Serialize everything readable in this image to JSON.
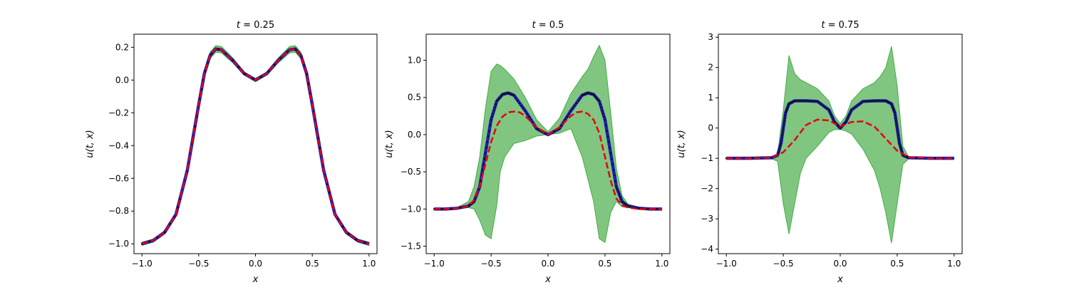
{
  "chart_data": [
    {
      "type": "line",
      "title": "t = 0.25",
      "xlabel": "x",
      "ylabel": "u(t, x)",
      "xlim": [
        -1.07,
        1.07
      ],
      "ylim": [
        -1.06,
        0.28
      ],
      "xticks": [
        "-1.0",
        "-0.5",
        "0.0",
        "0.5",
        "1.0"
      ],
      "yticks": [
        "-1.0",
        "-0.8",
        "-0.6",
        "-0.4",
        "-0.2",
        "0.0",
        "0.2"
      ],
      "grid": false,
      "series": [
        {
          "role": "exact",
          "style": "blue solid with black markers",
          "x": [
            -1.0,
            -0.9,
            -0.8,
            -0.7,
            -0.6,
            -0.5,
            -0.45,
            -0.4,
            -0.35,
            -0.3,
            -0.2,
            -0.1,
            0.0,
            0.1,
            0.2,
            0.3,
            0.35,
            0.4,
            0.45,
            0.5,
            0.6,
            0.7,
            0.8,
            0.9,
            1.0
          ],
          "y": [
            -1.0,
            -0.98,
            -0.93,
            -0.82,
            -0.55,
            -0.15,
            0.04,
            0.15,
            0.19,
            0.185,
            0.12,
            0.04,
            0.0,
            0.04,
            0.12,
            0.185,
            0.19,
            0.15,
            0.04,
            -0.15,
            -0.55,
            -0.82,
            -0.93,
            -0.98,
            -1.0
          ]
        },
        {
          "role": "prediction-mean",
          "style": "red dashed",
          "x": [
            -1.0,
            -0.9,
            -0.8,
            -0.7,
            -0.6,
            -0.5,
            -0.45,
            -0.4,
            -0.35,
            -0.3,
            -0.2,
            -0.1,
            0.0,
            0.1,
            0.2,
            0.3,
            0.35,
            0.4,
            0.45,
            0.5,
            0.6,
            0.7,
            0.8,
            0.9,
            1.0
          ],
          "y": [
            -1.0,
            -0.98,
            -0.93,
            -0.82,
            -0.55,
            -0.15,
            0.04,
            0.15,
            0.19,
            0.185,
            0.12,
            0.04,
            0.0,
            0.04,
            0.12,
            0.185,
            0.19,
            0.15,
            0.04,
            -0.15,
            -0.55,
            -0.82,
            -0.93,
            -0.98,
            -1.0
          ]
        },
        {
          "role": "uncertainty-band",
          "style": "green fill",
          "x": [
            -1.0,
            -0.9,
            -0.8,
            -0.7,
            -0.6,
            -0.5,
            -0.45,
            -0.4,
            -0.35,
            -0.3,
            -0.2,
            -0.1,
            0.0,
            0.1,
            0.2,
            0.3,
            0.35,
            0.4,
            0.45,
            0.5,
            0.6,
            0.7,
            0.8,
            0.9,
            1.0
          ],
          "lower": [
            -1.01,
            -0.99,
            -0.94,
            -0.83,
            -0.56,
            -0.17,
            0.02,
            0.13,
            0.17,
            0.165,
            0.105,
            0.03,
            -0.01,
            0.03,
            0.105,
            0.165,
            0.17,
            0.13,
            0.02,
            -0.17,
            -0.56,
            -0.83,
            -0.94,
            -0.99,
            -1.01
          ],
          "upper": [
            -0.99,
            -0.97,
            -0.92,
            -0.81,
            -0.54,
            -0.13,
            0.06,
            0.17,
            0.21,
            0.205,
            0.135,
            0.05,
            0.01,
            0.05,
            0.135,
            0.205,
            0.21,
            0.17,
            0.06,
            -0.13,
            -0.54,
            -0.81,
            -0.92,
            -0.97,
            -0.99
          ]
        }
      ]
    },
    {
      "type": "line",
      "title": "t = 0.5",
      "xlabel": "x",
      "ylabel": "u(t, x)",
      "xlim": [
        -1.07,
        1.07
      ],
      "ylim": [
        -1.6,
        1.35
      ],
      "xticks": [
        "-1.0",
        "-0.5",
        "0.0",
        "0.5",
        "1.0"
      ],
      "yticks": [
        "-1.5",
        "-1.0",
        "-0.5",
        "0.0",
        "0.5",
        "1.0"
      ],
      "grid": false,
      "series": [
        {
          "role": "exact",
          "style": "blue solid with black markers",
          "x": [
            -1.0,
            -0.9,
            -0.8,
            -0.7,
            -0.65,
            -0.6,
            -0.55,
            -0.5,
            -0.45,
            -0.4,
            -0.35,
            -0.3,
            -0.2,
            -0.1,
            0.0,
            0.1,
            0.2,
            0.3,
            0.35,
            0.4,
            0.45,
            0.5,
            0.55,
            0.6,
            0.65,
            0.7,
            0.8,
            0.9,
            1.0
          ],
          "y": [
            -1.0,
            -1.0,
            -0.99,
            -0.96,
            -0.9,
            -0.7,
            -0.25,
            0.2,
            0.45,
            0.54,
            0.56,
            0.53,
            0.32,
            0.08,
            0.0,
            0.08,
            0.32,
            0.53,
            0.56,
            0.54,
            0.45,
            0.2,
            -0.25,
            -0.7,
            -0.9,
            -0.96,
            -0.99,
            -1.0,
            -1.0
          ]
        },
        {
          "role": "prediction-mean",
          "style": "red dashed",
          "x": [
            -1.0,
            -0.9,
            -0.8,
            -0.7,
            -0.65,
            -0.6,
            -0.55,
            -0.5,
            -0.45,
            -0.4,
            -0.35,
            -0.3,
            -0.25,
            -0.2,
            -0.1,
            0.0,
            0.1,
            0.2,
            0.25,
            0.3,
            0.35,
            0.4,
            0.45,
            0.5,
            0.55,
            0.6,
            0.65,
            0.7,
            0.8,
            0.9,
            1.0
          ],
          "y": [
            -1.0,
            -1.0,
            -0.99,
            -0.96,
            -0.88,
            -0.7,
            -0.4,
            -0.1,
            0.12,
            0.24,
            0.3,
            0.31,
            0.3,
            0.25,
            0.1,
            0.0,
            0.1,
            0.25,
            0.3,
            0.31,
            0.28,
            0.2,
            0.02,
            -0.3,
            -0.62,
            -0.86,
            -0.95,
            -0.98,
            -1.0,
            -1.0,
            -1.0
          ]
        },
        {
          "role": "uncertainty-band",
          "style": "green fill",
          "x": [
            -1.0,
            -0.9,
            -0.8,
            -0.7,
            -0.65,
            -0.6,
            -0.55,
            -0.5,
            -0.45,
            -0.42,
            -0.38,
            -0.3,
            -0.2,
            -0.1,
            0.0,
            0.1,
            0.2,
            0.3,
            0.35,
            0.4,
            0.45,
            0.5,
            0.55,
            0.6,
            0.65,
            0.7,
            0.8,
            0.9,
            1.0
          ],
          "lower": [
            -1.01,
            -1.01,
            -1.0,
            -0.98,
            -1.0,
            -1.15,
            -1.35,
            -1.4,
            -0.95,
            -0.5,
            -0.3,
            -0.12,
            -0.08,
            -0.02,
            0.0,
            0.02,
            0.08,
            -0.3,
            -0.6,
            -0.9,
            -1.4,
            -1.45,
            -1.05,
            -0.9,
            -0.97,
            -0.98,
            -1.0,
            -1.01,
            -1.01
          ],
          "upper": [
            -0.99,
            -0.99,
            -0.98,
            -0.9,
            -0.7,
            -0.3,
            0.35,
            0.85,
            0.95,
            0.93,
            0.88,
            0.75,
            0.5,
            0.2,
            0.04,
            0.22,
            0.55,
            0.78,
            0.88,
            1.05,
            1.2,
            1.0,
            0.3,
            -0.45,
            -0.82,
            -0.93,
            -0.98,
            -0.99,
            -0.99
          ]
        }
      ]
    },
    {
      "type": "line",
      "title": "t = 0.75",
      "xlabel": "x",
      "ylabel": "u(t, x)",
      "xlim": [
        -1.07,
        1.07
      ],
      "ylim": [
        -4.15,
        3.1
      ],
      "xticks": [
        "-1.0",
        "-0.5",
        "0.0",
        "0.5",
        "1.0"
      ],
      "yticks": [
        "-4",
        "-3",
        "-2",
        "-1",
        "0",
        "1",
        "2",
        "3"
      ],
      "grid": false,
      "series": [
        {
          "role": "exact",
          "style": "blue solid with black markers",
          "x": [
            -1.0,
            -0.8,
            -0.6,
            -0.55,
            -0.52,
            -0.5,
            -0.48,
            -0.45,
            -0.4,
            -0.3,
            -0.2,
            -0.1,
            -0.05,
            0.0,
            0.05,
            0.1,
            0.2,
            0.3,
            0.4,
            0.45,
            0.48,
            0.5,
            0.52,
            0.55,
            0.6,
            0.8,
            1.0
          ],
          "y": [
            -1.0,
            -1.0,
            -0.98,
            -0.9,
            -0.5,
            0.0,
            0.5,
            0.8,
            0.9,
            0.9,
            0.88,
            0.6,
            0.2,
            0.0,
            0.2,
            0.6,
            0.88,
            0.9,
            0.9,
            0.8,
            0.5,
            0.0,
            -0.5,
            -0.9,
            -0.98,
            -1.0,
            -1.0
          ]
        },
        {
          "role": "prediction-mean",
          "style": "red dashed",
          "x": [
            -1.0,
            -0.8,
            -0.6,
            -0.5,
            -0.4,
            -0.3,
            -0.2,
            -0.1,
            0.0,
            0.1,
            0.2,
            0.3,
            0.4,
            0.5,
            0.6,
            0.8,
            1.0
          ],
          "y": [
            -1.0,
            -1.0,
            -0.98,
            -0.8,
            -0.4,
            0.1,
            0.28,
            0.25,
            0.05,
            0.2,
            0.22,
            0.05,
            -0.35,
            -0.75,
            -0.96,
            -1.0,
            -1.0
          ]
        },
        {
          "role": "uncertainty-band",
          "style": "green fill",
          "x": [
            -1.0,
            -0.8,
            -0.6,
            -0.55,
            -0.5,
            -0.45,
            -0.4,
            -0.35,
            -0.3,
            -0.2,
            -0.1,
            -0.05,
            0.0,
            0.05,
            0.1,
            0.2,
            0.3,
            0.35,
            0.4,
            0.45,
            0.5,
            0.55,
            0.6,
            0.8,
            1.0
          ],
          "lower": [
            -1.02,
            -1.02,
            -1.02,
            -1.1,
            -2.5,
            -3.5,
            -2.5,
            -1.5,
            -1.0,
            -0.6,
            -0.15,
            -0.05,
            -0.05,
            -0.1,
            -0.2,
            -0.7,
            -1.4,
            -2.0,
            -2.8,
            -3.8,
            -2.5,
            -1.2,
            -1.02,
            -1.02,
            -1.02
          ],
          "upper": [
            -0.98,
            -0.98,
            -0.97,
            -0.85,
            0.6,
            2.4,
            1.8,
            1.6,
            1.5,
            1.3,
            0.9,
            0.4,
            0.15,
            0.4,
            0.9,
            1.3,
            1.5,
            1.7,
            2.0,
            2.7,
            1.4,
            -0.6,
            -0.95,
            -0.98,
            -0.98
          ]
        }
      ]
    }
  ]
}
